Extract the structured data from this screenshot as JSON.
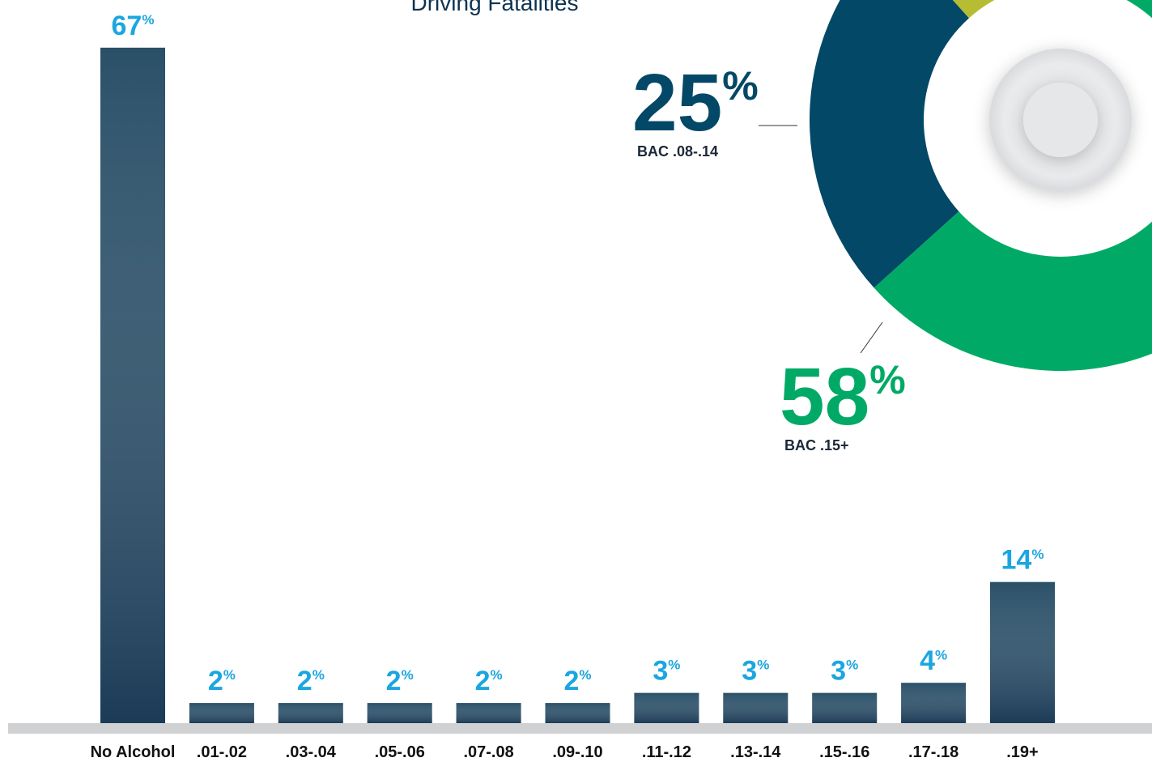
{
  "chart_data": [
    {
      "type": "bar",
      "title": "Driving Fatalities",
      "categories": [
        "No Alcohol",
        ".01-.02",
        ".03-.04",
        ".05-.06",
        ".07-.08",
        ".09-.10",
        ".11-.12",
        ".13-.14",
        ".15-.16",
        ".17-.18",
        ".19+"
      ],
      "values": [
        67,
        2,
        2,
        2,
        2,
        2,
        3,
        3,
        3,
        4,
        14
      ],
      "value_labels": [
        "67%",
        "2%",
        "2%",
        "2%",
        "2%",
        "2%",
        "3%",
        "3%",
        "3%",
        "4%",
        "14%"
      ],
      "color": "#2a5068",
      "label_color": "#1ba6e0"
    },
    {
      "type": "donut",
      "categories": [
        null,
        "BAC .15+",
        "BAC .08-.14"
      ],
      "values": [
        17,
        58,
        25
      ],
      "value_labels": [
        null,
        "58%",
        "25%"
      ],
      "colors": [
        "#b6bd33",
        "#00aa66",
        "#034866"
      ]
    }
  ]
}
